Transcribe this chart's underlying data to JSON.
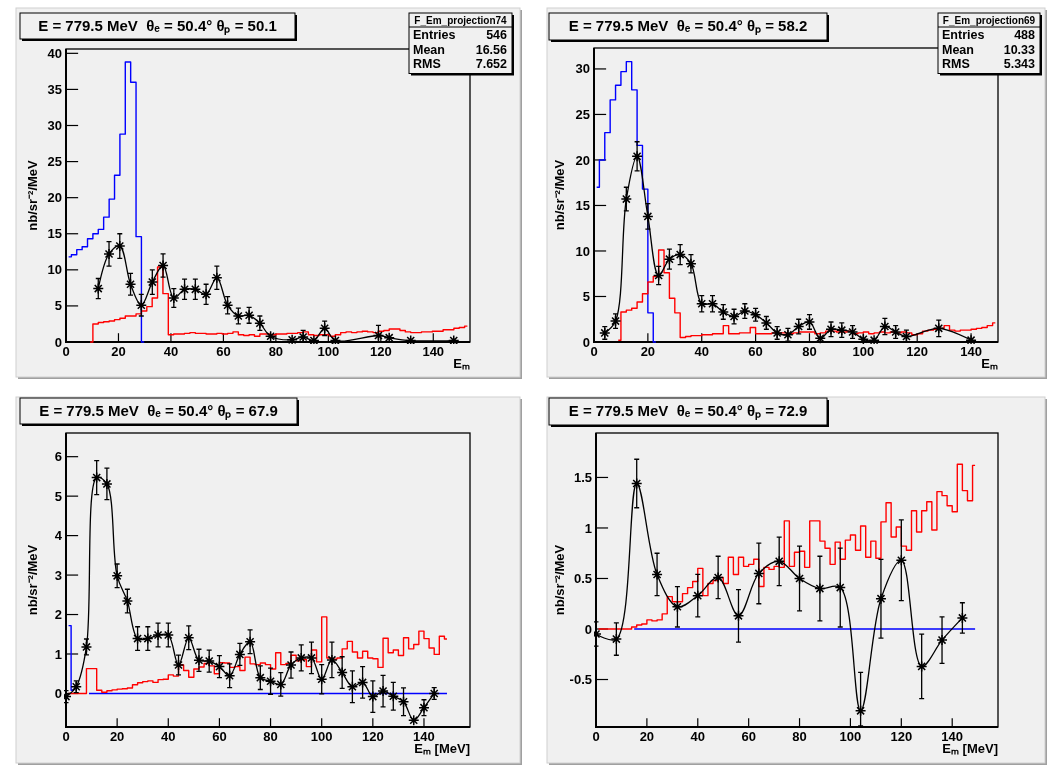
{
  "chart_data": [
    {
      "type": "step",
      "title": "E = 779.5 MeV  θₑ = 50.4° θₚ = 50.1",
      "xlabel": "Eₘ",
      "ylabel": "nb/sr⁻²/MeV",
      "xlim": [
        0,
        154
      ],
      "ylim": [
        0,
        40.6
      ],
      "xticks": [
        0,
        20,
        40,
        60,
        80,
        100,
        120,
        140
      ],
      "yticks": [
        0,
        5,
        10,
        15,
        20,
        25,
        30,
        35,
        40
      ],
      "annotations": [
        "F_Em_projection74",
        "Entries",
        "546",
        "Mean",
        "16.56",
        "RMS",
        "7.652"
      ],
      "x": [
        1,
        3.1,
        5.1,
        7.2,
        9.2,
        11.3,
        13.3,
        15.4,
        17.5,
        19.5,
        21.6,
        23.6,
        25.7,
        27.7,
        29.8,
        31.8,
        33.9,
        35.9,
        38,
        40,
        42.1,
        44.1,
        46.2,
        48.3,
        50.3,
        52.4,
        54.4,
        56.5,
        58.5,
        60.6,
        62.6,
        64.7,
        66.7,
        68.8,
        70.8,
        72.9,
        74.9,
        77,
        79.1,
        81.1,
        83.2,
        85.2,
        87.3,
        89.3,
        91.4,
        93.4,
        95.5,
        97.5,
        99.6,
        101.6,
        103.7,
        105.7,
        107.8,
        109.9,
        111.9,
        114,
        116,
        118.1,
        120.1,
        122.2,
        124.2,
        126.3,
        128.3,
        130.4,
        132.4,
        134.5,
        136.5,
        138.6,
        140.7,
        142.7,
        144.8,
        146.8,
        148.9,
        150.9,
        153
      ],
      "series": [
        {
          "color": "#0000ff",
          "values": [
            11.8,
            12.1,
            12.8,
            13.2,
            14.3,
            15,
            15.6,
            17.3,
            19.8,
            23.1,
            28.8,
            38.8,
            36,
            14.6,
            0,
            null,
            null,
            null,
            null,
            null,
            null,
            null,
            null,
            null,
            null,
            null,
            null,
            null,
            null,
            null,
            null,
            null,
            null,
            null,
            null,
            null,
            null,
            null,
            null,
            null,
            null,
            null,
            null,
            null,
            null,
            null,
            null,
            null,
            null,
            null,
            null,
            null,
            null,
            null,
            null,
            null,
            null,
            null,
            null,
            null,
            null,
            null,
            null,
            null,
            null,
            null,
            null,
            null,
            null,
            null,
            null,
            null,
            null,
            null,
            null
          ]
        },
        {
          "color": "#ff0000",
          "values": [
            null,
            null,
            null,
            null,
            0,
            2.5,
            2.7,
            2.8,
            2.9,
            3.1,
            3.3,
            3.6,
            3.6,
            3.9,
            4.3,
            4.9,
            6.1,
            10.4,
            6.7,
            1,
            1.1,
            1.1,
            1.2,
            1.3,
            1.2,
            1.2,
            1.1,
            1.1,
            1.2,
            1.1,
            1.2,
            1.4,
            1,
            0.9,
            1,
            0.8,
            1.1,
            1.1,
            1,
            1.1,
            1.1,
            1.2,
            1.2,
            1.3,
            1.4,
            1,
            0.9,
            1,
            1,
            0.8,
            1,
            1.3,
            1.4,
            1.3,
            1.4,
            1.5,
            1.4,
            1.3,
            1.5,
            1.6,
            1.8,
            1.8,
            1.6,
            1.4,
            1.3,
            1.3,
            1.4,
            1.4,
            1.5,
            1.5,
            1.7,
            1.7,
            1.9,
            2,
            2.2
          ]
        },
        {
          "type": "line",
          "color": "#000000",
          "marker": "cross",
          "x": [
            12.3,
            16.4,
            20.5,
            24.6,
            28.7,
            32.9,
            37,
            41.1,
            45.2,
            49.3,
            53.4,
            57.5,
            61.6,
            65.7,
            69.8,
            73.9,
            78,
            86.2,
            90.4,
            94.5,
            98.6,
            102.7,
            119.1,
            123.2,
            131.4,
            147.8
          ],
          "values": [
            7.4,
            12.2,
            13.3,
            8,
            5.1,
            8.3,
            10.6,
            6.1,
            7.3,
            7.3,
            6.6,
            8.9,
            5.1,
            3.6,
            3.7,
            2.6,
            0.8,
            0.3,
            0.7,
            0.2,
            1.9,
            0.2,
            0.9,
            0.6,
            0.2,
            0.2
          ],
          "errors": [
            1.4,
            1.7,
            1.7,
            1.5,
            1.5,
            1.7,
            1.6,
            1.3,
            1.4,
            1.4,
            1.4,
            1.6,
            1.2,
            1.1,
            1.1,
            1,
            null,
            null,
            [
              0,
              1.6
            ],
            null,
            1,
            null,
            [
              0,
              2.3
            ],
            null,
            null,
            null
          ]
        }
      ]
    },
    {
      "type": "step",
      "title": "E = 779.5 MeV  θₑ = 50.4° θₚ = 58.2",
      "xlabel": "Eₘ",
      "ylabel": "nb/sr⁻²/MeV",
      "xlim": [
        0,
        150
      ],
      "ylim": [
        0,
        32.3
      ],
      "xticks": [
        0,
        20,
        40,
        60,
        80,
        100,
        120,
        140
      ],
      "yticks": [
        0,
        5,
        10,
        15,
        20,
        25,
        30
      ],
      "annotations": [
        "F_Em_projection69",
        "Entries",
        "488",
        "Mean",
        "10.33",
        "RMS",
        "5.343"
      ],
      "x": [
        1,
        3,
        5,
        7,
        9,
        11,
        13,
        15,
        17,
        19,
        21,
        23,
        25,
        27,
        29,
        31,
        33,
        35,
        37,
        39,
        41,
        43,
        45,
        47,
        49,
        51,
        53,
        55,
        57,
        59,
        61,
        63,
        65,
        67,
        69,
        71,
        73,
        75,
        77,
        79,
        81,
        83,
        85,
        87,
        89,
        91,
        93,
        95,
        97,
        99,
        101,
        103,
        105,
        107,
        109,
        111,
        113,
        115,
        117,
        119,
        121,
        123,
        125,
        127,
        129,
        131,
        133,
        135,
        137,
        139,
        141,
        143,
        145,
        147,
        149
      ],
      "series": [
        {
          "color": "#0000ff",
          "values": [
            17,
            20,
            23,
            26.6,
            28.2,
            29.7,
            30.8,
            27.7,
            21.6,
            16.8,
            3.2,
            0,
            null,
            null,
            null,
            null,
            null,
            null,
            null,
            null,
            null,
            null,
            null,
            null,
            null,
            null,
            null,
            null,
            null,
            null,
            null,
            null,
            null,
            null,
            null,
            null,
            null,
            null,
            null,
            null,
            null,
            null,
            null,
            null,
            null,
            null,
            null,
            null,
            null,
            null,
            null,
            null,
            null,
            null,
            null,
            null,
            null,
            null,
            null,
            null,
            null,
            null,
            null,
            null,
            null,
            null,
            null,
            null,
            null,
            null,
            null,
            null,
            null,
            null,
            null
          ]
        },
        {
          "color": "#ff0000",
          "values": [
            null,
            null,
            null,
            null,
            0.2,
            3.3,
            3.5,
            3.7,
            4.4,
            5.3,
            6.6,
            7.2,
            10.1,
            7.6,
            4.8,
            3.2,
            0.5,
            0.6,
            0.7,
            0.7,
            0.8,
            0.8,
            0.9,
            0.9,
            1.8,
            0.9,
            0.9,
            1,
            1,
            1.6,
            0.9,
            0.9,
            0.9,
            1,
            1,
            1,
            0.9,
            1,
            1.1,
            1.1,
            1.1,
            0.9,
            1,
            1.2,
            1.2,
            1.1,
            1.1,
            1.2,
            0.9,
            1,
            1.1,
            0.9,
            1,
            1.1,
            1,
            1.1,
            1,
            1.1,
            1,
            0.8,
            0.9,
            1.2,
            1.3,
            1.4,
            1.5,
            1.8,
            1.3,
            1.2,
            1.3,
            1.3,
            1.4,
            1.5,
            1.6,
            1.8,
            2.1
          ]
        },
        {
          "type": "line",
          "color": "#000000",
          "marker": "cross",
          "x": [
            4,
            8,
            12,
            16,
            20,
            24,
            28,
            32,
            36,
            40,
            44,
            48,
            52,
            56,
            60,
            64,
            68,
            72,
            76,
            80,
            84,
            88,
            92,
            96,
            100,
            104,
            108,
            112,
            116,
            128,
            140
          ],
          "values": [
            1,
            2.3,
            15.7,
            20.4,
            13.8,
            7.3,
            9.1,
            9.6,
            8.6,
            4.2,
            4.2,
            3.3,
            2.8,
            3.4,
            3,
            2.1,
            1,
            0.8,
            1.7,
            2.2,
            0.4,
            1.4,
            1.3,
            1.1,
            0.3,
            0.2,
            1.7,
            1.1,
            0.6,
            1.5,
            0.2
          ],
          "errors": [
            0.7,
            0.8,
            1.3,
            1.6,
            1.4,
            1,
            1.1,
            1.1,
            1,
            0.9,
            0.9,
            0.8,
            0.8,
            0.8,
            0.7,
            0.7,
            0.7,
            0.7,
            0.8,
            0.8,
            null,
            0.8,
            0.8,
            0.7,
            null,
            null,
            0.9,
            0.7,
            [
              0,
              1.3
            ],
            0.9,
            null
          ]
        }
      ]
    },
    {
      "type": "step",
      "title": "E = 779.5 MeV  θₑ = 50.4° θₚ = 67.9",
      "xlabel": "Eₘ [MeV]",
      "ylabel": "nb/sr⁻²/MeV",
      "xlim": [
        0,
        158
      ],
      "ylim": [
        -0.85,
        6.6
      ],
      "xticks": [
        0,
        20,
        40,
        60,
        80,
        100,
        120,
        140
      ],
      "yticks": [
        0,
        1,
        2,
        3,
        4,
        5,
        6
      ],
      "x": [
        1,
        3,
        5,
        7,
        9,
        11,
        13,
        15,
        17,
        19,
        21,
        23,
        25,
        27,
        29,
        31,
        33,
        35,
        37,
        39,
        41,
        43,
        45,
        47,
        49,
        51,
        53,
        55,
        57,
        59,
        61,
        63,
        65,
        67,
        69,
        71,
        73,
        75,
        77,
        79,
        81,
        83,
        85,
        87,
        89,
        91,
        93,
        95,
        97,
        99,
        101,
        103,
        105,
        107,
        109,
        111,
        113,
        115,
        117,
        119,
        121,
        123,
        125,
        127,
        129,
        131,
        133,
        135,
        137,
        139,
        141,
        143,
        145,
        147,
        149
      ],
      "series": [
        {
          "color": "#0000ff",
          "values": [
            1.72,
            0.08,
            null,
            null,
            0,
            0,
            0,
            0,
            0,
            0,
            0,
            0,
            0,
            0,
            0,
            0,
            0,
            0,
            0,
            0,
            0,
            0,
            0,
            0,
            0,
            0,
            0,
            0,
            0,
            0,
            0,
            0,
            0,
            0,
            0,
            0,
            0,
            0,
            0,
            0,
            0,
            0,
            0,
            0,
            0,
            0,
            0,
            0,
            0,
            0,
            0,
            0,
            0,
            0,
            0,
            0,
            0,
            0,
            0,
            0,
            0,
            0,
            0,
            0,
            0,
            0,
            0,
            0,
            0,
            0,
            0,
            0,
            0,
            0,
            0
          ]
        },
        {
          "color": "#ff0000",
          "values": [
            0,
            0,
            0,
            0,
            0.63,
            0.63,
            0.08,
            0.03,
            0.07,
            0.09,
            0.11,
            0.12,
            0.14,
            0.22,
            0.27,
            0.3,
            0.32,
            0.28,
            0.35,
            0.36,
            0.47,
            0.44,
            0.72,
            0.58,
            0.41,
            0.62,
            0.67,
            0.76,
            0.7,
            0.5,
            0.78,
            0.77,
            0.66,
            0.68,
            0.58,
            0.92,
            0.75,
            0.73,
            0.77,
            0.73,
            0.62,
            1.03,
            0.73,
            0.76,
            0.97,
            0.83,
            0.86,
            0.68,
            1.1,
            0.8,
            1.94,
            0.9,
            0.87,
            0.9,
            1.13,
            1.32,
            1.05,
            0.9,
            1.07,
            0.9,
            0.88,
            0.66,
            1.4,
            1.03,
            1.1,
            0.96,
            1.41,
            1.13,
            1.24,
            1.58,
            1.39,
            1.15,
            0.99,
            1.45,
            1.38
          ]
        },
        {
          "type": "line",
          "color": "#000000",
          "marker": "cross",
          "x": [
            0,
            4,
            8,
            12,
            16,
            20,
            24,
            28,
            32,
            36,
            40,
            44,
            48,
            52,
            56,
            60,
            64,
            68,
            72,
            76,
            80,
            84,
            88,
            92,
            96,
            100,
            104,
            108,
            112,
            116,
            120,
            124,
            128,
            132,
            136,
            140,
            144
          ],
          "values": [
            -0.08,
            0.17,
            1.18,
            5.47,
            5.31,
            2.98,
            2.34,
            1.39,
            1.39,
            1.48,
            1.48,
            0.72,
            1.41,
            0.84,
            0.82,
            0.68,
            0.45,
            0.99,
            1.31,
            0.4,
            0.31,
            0.23,
            0.72,
            0.9,
            0.9,
            0.36,
            0.85,
            0.53,
            0.17,
            0.28,
            -0.08,
            0.06,
            -0.07,
            -0.21,
            -0.68,
            -0.36,
            0
          ],
          "errors": [
            0.15,
            0.15,
            0.2,
            0.43,
            0.4,
            0.3,
            0.3,
            0.3,
            0.3,
            0.3,
            0.3,
            0.25,
            0.3,
            0.28,
            0.28,
            0.28,
            0.3,
            0.28,
            0.3,
            0.3,
            0.33,
            0.3,
            0.33,
            0.33,
            0.4,
            0.37,
            0.45,
            0.4,
            0.4,
            0.4,
            0.4,
            0.4,
            0.35,
            0.35,
            null,
            0.2,
            0.15
          ]
        }
      ]
    },
    {
      "type": "step",
      "title": "E = 779.5 MeV  θₑ = 50.4° θₚ = 72.9",
      "xlabel": "Eₘ [MeV]",
      "ylabel": "nb/sr⁻²/MeV",
      "xlim": [
        0,
        158
      ],
      "ylim": [
        -0.97,
        1.94
      ],
      "xticks": [
        0,
        20,
        40,
        60,
        80,
        100,
        120,
        140
      ],
      "yticks": [
        -0.5,
        0,
        0.5,
        1,
        1.5
      ],
      "x": [
        1,
        3,
        5,
        7,
        9,
        11,
        13,
        15,
        17,
        19,
        21,
        23,
        25,
        27,
        29,
        31,
        33,
        35,
        37,
        39,
        41,
        43,
        45,
        47,
        49,
        51,
        53,
        55,
        57,
        59,
        61,
        63,
        65,
        67,
        69,
        71,
        73,
        75,
        77,
        79,
        81,
        83,
        85,
        87,
        89,
        91,
        93,
        95,
        97,
        99,
        101,
        103,
        105,
        107,
        109,
        111,
        113,
        115,
        117,
        119,
        121,
        123,
        125,
        127,
        129,
        131,
        133,
        135,
        137,
        139,
        141,
        143,
        145,
        147,
        149
      ],
      "series": [
        {
          "color": "#0000ff",
          "values": [
            null,
            null,
            null,
            null,
            null,
            null,
            null,
            0,
            0,
            0,
            0,
            0,
            0,
            0,
            0,
            0,
            0,
            0,
            0,
            0,
            0,
            0,
            0,
            0,
            0,
            0,
            0,
            0,
            0,
            0,
            0,
            0,
            0,
            0,
            0,
            0,
            0,
            0,
            0,
            0,
            0,
            0,
            0,
            0,
            0,
            0,
            0,
            0,
            0,
            0,
            0,
            0,
            0,
            0,
            0,
            0,
            0,
            0,
            0,
            0,
            0,
            0,
            0,
            0,
            0,
            0,
            0,
            0,
            0,
            0,
            0,
            0,
            0,
            0,
            0
          ]
        },
        {
          "color": "#ff0000",
          "values": [
            0,
            0,
            0,
            0,
            0,
            0,
            0,
            0.02,
            0.04,
            0.05,
            0.09,
            0.08,
            0.09,
            0.15,
            0.32,
            0.27,
            0.27,
            0.35,
            0.41,
            0.47,
            0.6,
            0.33,
            0.45,
            0.48,
            0.51,
            0.45,
            0.71,
            0.54,
            0.71,
            0.62,
            0.64,
            0.69,
            0.42,
            0.61,
            0.59,
            0.62,
            0.61,
            1.07,
            0.62,
            0.76,
            0.77,
            0.61,
            1.07,
            1.07,
            0.87,
            0.8,
            0.64,
            0.86,
            0.69,
            0.88,
            0.93,
            0.78,
            1.02,
            0.71,
            0.87,
            0.7,
            1.06,
            1.25,
            0.91,
            1.01,
            0.82,
            0.78,
            1.17,
            0.96,
            1.17,
            1.26,
            0.98,
            1.36,
            1.32,
            1.22,
            1.16,
            1.63,
            1.37,
            1.27,
            1.62
          ]
        },
        {
          "type": "line",
          "color": "#000000",
          "marker": "cross",
          "x": [
            0,
            8,
            16,
            24,
            32,
            40,
            48,
            56,
            64,
            72,
            80,
            88,
            96,
            104,
            112,
            120,
            128,
            136,
            144
          ],
          "values": [
            -0.05,
            -0.1,
            1.44,
            0.54,
            0.22,
            0.33,
            0.51,
            0.13,
            0.55,
            0.67,
            0.5,
            0.4,
            0.41,
            -0.81,
            0.3,
            0.68,
            -0.37,
            -0.11,
            0.11
          ],
          "errors": [
            0.12,
            0.16,
            0.24,
            0.21,
            0.2,
            0.21,
            0.21,
            0.26,
            0.3,
            0.24,
            0.32,
            0.32,
            0.39,
            [
              -0.96,
              -0.43
            ],
            0.39,
            0.4,
            0.32,
            0.23,
            0.15
          ]
        }
      ]
    }
  ]
}
